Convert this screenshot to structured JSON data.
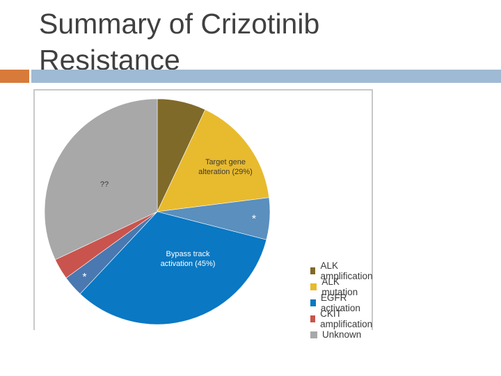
{
  "slide": {
    "title": "Summary of Crizotinib Resistance",
    "colors": {
      "accent": "#d87a3a",
      "title_line": "#9fbad4",
      "title_text": "#404040"
    }
  },
  "chart_data": {
    "type": "pie",
    "categories": [
      "ALK amplification",
      "ALK mutation",
      "EGFR activation",
      "CKIT amplification",
      "Unknown"
    ],
    "values": [
      7,
      22,
      36,
      3,
      32
    ],
    "slices": [
      {
        "label": "ALK amplification",
        "value": 7,
        "color": "#7f6a2a"
      },
      {
        "label": "ALK mutation",
        "value": 16,
        "color": "#e8ba2e"
      },
      {
        "label": "ALK mutation",
        "value": 6,
        "color": "#5a8fbe",
        "marker": "*"
      },
      {
        "label": "EGFR activation",
        "value": 33,
        "color": "#0a78c3"
      },
      {
        "label": "EGFR activation",
        "value": 3,
        "color": "#4a78b0",
        "marker": "*"
      },
      {
        "label": "CKIT amplification",
        "value": 3,
        "color": "#c9544e"
      },
      {
        "label": "Unknown",
        "value": 32,
        "color": "#a8a8a8"
      }
    ],
    "annotations": [
      {
        "text": "Target gene alteration (29%)",
        "lines": [
          "Target gene",
          "alteration (29%)"
        ]
      },
      {
        "text": "Bypass track activation (45%)",
        "lines": [
          "Bypass track",
          "activation (45%)"
        ]
      },
      {
        "text": "??"
      }
    ],
    "legend": {
      "placement": "right",
      "entries": [
        {
          "label": "ALK amplification",
          "color": "#7f6a2a"
        },
        {
          "label": "ALK mutation",
          "color": "#e8ba2e"
        },
        {
          "label": "EGFR activation",
          "color": "#0a78c3"
        },
        {
          "label": "CKIT amplification",
          "color": "#c9544e"
        },
        {
          "label": "Unknown",
          "color": "#a8a8a8"
        }
      ]
    }
  }
}
